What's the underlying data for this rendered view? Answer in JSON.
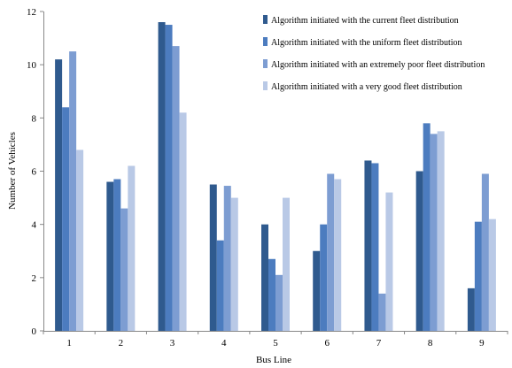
{
  "chart_data": {
    "type": "bar",
    "title": "",
    "xlabel": "Bus Line",
    "ylabel": "Number of Vehicles",
    "ylim": [
      0,
      12
    ],
    "yticks": [
      0,
      2,
      4,
      6,
      8,
      10,
      12
    ],
    "grid": false,
    "legend_position": "top-right",
    "categories": [
      "1",
      "2",
      "3",
      "4",
      "5",
      "6",
      "7",
      "8",
      "9"
    ],
    "series": [
      {
        "name": "Algorithm initiated with the current fleet distribution",
        "color": "#2f5a8e",
        "values": [
          10.2,
          5.6,
          11.6,
          5.5,
          4.0,
          3.0,
          6.4,
          6.0,
          1.6
        ]
      },
      {
        "name": "Algorithm initiated with the uniform fleet distribution",
        "color": "#4c7cbf",
        "values": [
          8.4,
          5.7,
          11.5,
          3.4,
          2.7,
          4.0,
          6.3,
          7.8,
          4.1
        ]
      },
      {
        "name": "Algorithm initiated with an extremely poor  fleet distribution",
        "color": "#7d9dd2",
        "values": [
          10.5,
          4.6,
          10.7,
          5.45,
          2.1,
          5.9,
          1.4,
          7.4,
          5.9
        ]
      },
      {
        "name": "Algorithm initiated with a very good fleet distribution",
        "color": "#b9c9e6",
        "values": [
          6.8,
          6.2,
          8.2,
          5.0,
          5.0,
          5.7,
          5.2,
          7.5,
          4.2
        ]
      }
    ]
  }
}
